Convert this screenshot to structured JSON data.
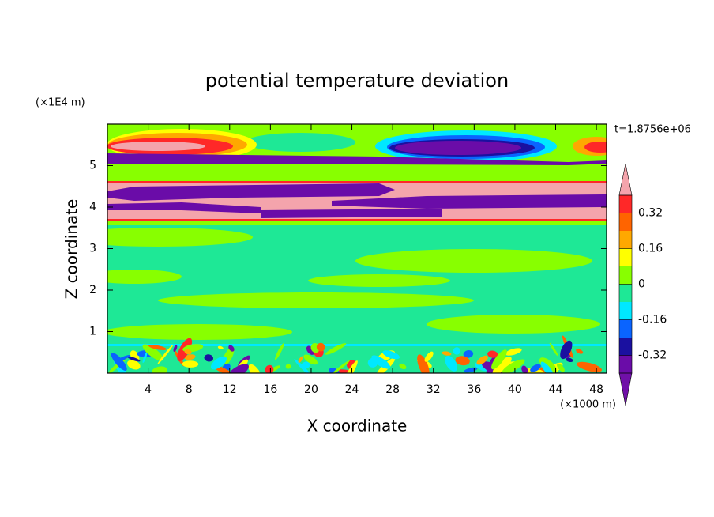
{
  "chart_data": {
    "type": "contour",
    "title": "potential temperature deviation",
    "x_label": "X coordinate",
    "y_label": "Z coordinate",
    "x_unit": "(×1000 m)",
    "y_unit": "(×1E4 m)",
    "annotation": "t=1.8756e+06",
    "xlim": [
      0,
      49
    ],
    "ylim": [
      0,
      6
    ],
    "xticks": [
      4,
      8,
      12,
      16,
      20,
      24,
      28,
      32,
      36,
      40,
      44,
      48
    ],
    "yticks": [
      1,
      2,
      3,
      4,
      5
    ],
    "colorbar": {
      "levels": [
        -0.4,
        -0.32,
        -0.24,
        -0.16,
        -0.08,
        0,
        0.08,
        0.16,
        0.24,
        0.32,
        0.4
      ],
      "colors": [
        "#7010a8",
        "#6a0ca8",
        "#1a10a0",
        "#0a64ff",
        "#00e8ff",
        "#1ee896",
        "#88ff00",
        "#ffff00",
        "#ffa800",
        "#ff6400",
        "#ff2828",
        "#f4a4ac"
      ],
      "ticks": [
        -0.32,
        -0.16,
        0,
        0.16,
        0.32
      ],
      "extend": "both"
    }
  }
}
